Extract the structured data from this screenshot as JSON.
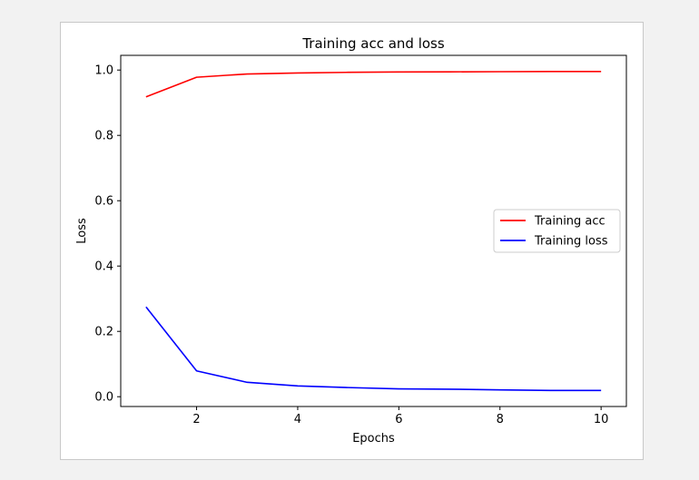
{
  "chart_data": {
    "type": "line",
    "title": "Training acc and loss",
    "xlabel": "Epochs",
    "ylabel": "Loss",
    "xlim": [
      0.5,
      10.5
    ],
    "ylim": [
      -0.03,
      1.045
    ],
    "xticks": [
      2,
      4,
      6,
      8,
      10
    ],
    "yticks": [
      0.0,
      0.2,
      0.4,
      0.6,
      0.8,
      1.0
    ],
    "ytick_labels": [
      "0.0",
      "0.2",
      "0.4",
      "0.6",
      "0.8",
      "1.0"
    ],
    "grid": false,
    "legend_position": "center right",
    "x": [
      1,
      2,
      3,
      4,
      5,
      6,
      7,
      8,
      9,
      10
    ],
    "series": [
      {
        "name": "Training acc",
        "color": "#ff0000",
        "values": [
          0.918,
          0.978,
          0.988,
          0.991,
          0.993,
          0.994,
          0.9945,
          0.995,
          0.9955,
          0.9955
        ]
      },
      {
        "name": "Training loss",
        "color": "#0000ff",
        "values": [
          0.275,
          0.079,
          0.044,
          0.033,
          0.028,
          0.024,
          0.023,
          0.021,
          0.019,
          0.019
        ]
      }
    ]
  }
}
